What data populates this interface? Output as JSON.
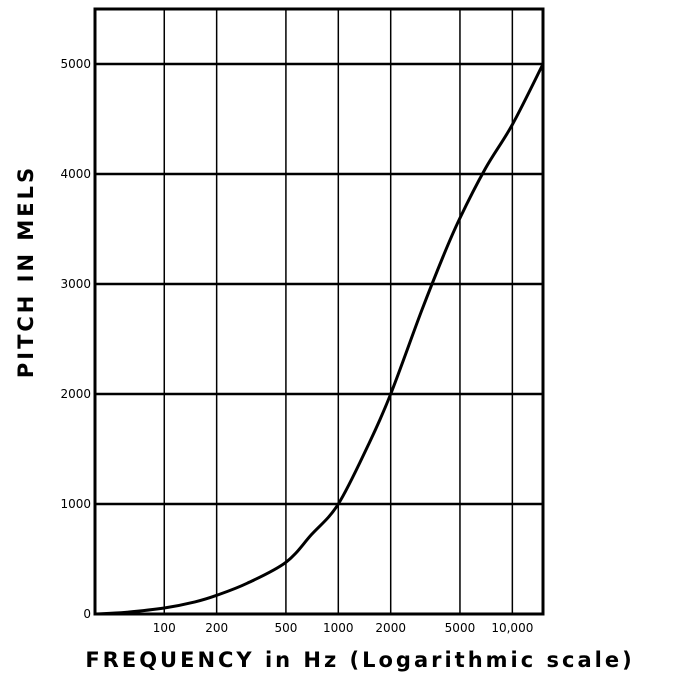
{
  "chart_data": {
    "type": "line",
    "title": "",
    "xlabel": "FREQUENCY in Hz (Logarithmic scale)",
    "ylabel": "PITCH IN MELS",
    "xscale": "log",
    "xlim": [
      40,
      15000
    ],
    "ylim": [
      0,
      5500
    ],
    "grid": true,
    "x_ticks": [
      100,
      200,
      500,
      1000,
      2000,
      5000,
      10000
    ],
    "x_tick_labels": [
      "100",
      "200",
      "500",
      "1000",
      "2000",
      "5000",
      "10,000"
    ],
    "y_ticks": [
      0,
      1000,
      2000,
      3000,
      4000,
      5000
    ],
    "y_tick_labels": [
      "0",
      "1000",
      "2000",
      "3000",
      "4000",
      "5000"
    ],
    "series": [
      {
        "name": "",
        "x": [
          40,
          60,
          100,
          150,
          200,
          300,
          500,
          700,
          1000,
          1500,
          2000,
          3000,
          4000,
          5000,
          7000,
          10000,
          15000
        ],
        "y": [
          0,
          15,
          55,
          110,
          170,
          280,
          470,
          720,
          1000,
          1550,
          2000,
          2750,
          3250,
          3600,
          4050,
          4450,
          5000
        ]
      }
    ],
    "colors": {
      "line": "#000000",
      "grid": "#000000"
    }
  }
}
